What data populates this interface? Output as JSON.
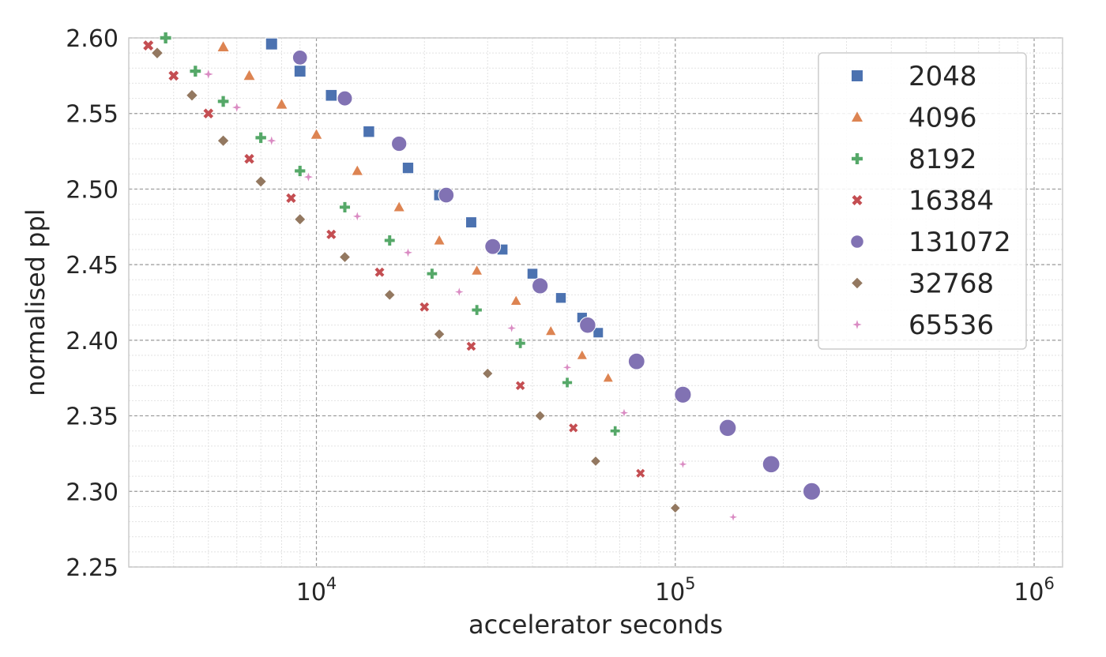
{
  "chart_data": {
    "type": "scatter",
    "title": "",
    "xlabel": "accelerator seconds",
    "ylabel": "normalised ppl",
    "xscale": "log",
    "xlim": [
      3000,
      1200000
    ],
    "ylim": [
      2.25,
      2.6
    ],
    "x_ticks": [
      {
        "value": 10000,
        "base": "10",
        "exp": "4"
      },
      {
        "value": 100000,
        "base": "10",
        "exp": "5"
      },
      {
        "value": 1000000,
        "base": "10",
        "exp": "6"
      }
    ],
    "y_ticks": [
      "2.25",
      "2.30",
      "2.35",
      "2.40",
      "2.45",
      "2.50",
      "2.55",
      "2.60"
    ],
    "grid": true,
    "legend_position": "top-right",
    "series": [
      {
        "name": "2048",
        "marker": "square",
        "color": "#4c72b0",
        "x": [
          7500,
          9000,
          11000,
          14000,
          18000,
          22000,
          27000,
          33000,
          40000,
          48000,
          55000,
          61000
        ],
        "y": [
          2.596,
          2.578,
          2.562,
          2.538,
          2.514,
          2.496,
          2.478,
          2.46,
          2.444,
          2.428,
          2.415,
          2.405
        ]
      },
      {
        "name": "4096",
        "marker": "triangle",
        "color": "#dd8452",
        "x": [
          5500,
          6500,
          8000,
          10000,
          13000,
          17000,
          22000,
          28000,
          36000,
          45000,
          55000,
          65000
        ],
        "y": [
          2.594,
          2.575,
          2.556,
          2.536,
          2.512,
          2.488,
          2.466,
          2.446,
          2.426,
          2.406,
          2.39,
          2.375
        ]
      },
      {
        "name": "8192",
        "marker": "plus",
        "color": "#55a868",
        "x": [
          3800,
          4600,
          5500,
          7000,
          9000,
          12000,
          16000,
          21000,
          28000,
          37000,
          50000,
          68000
        ],
        "y": [
          2.6,
          2.578,
          2.558,
          2.534,
          2.512,
          2.488,
          2.466,
          2.444,
          2.42,
          2.398,
          2.372,
          2.34
        ]
      },
      {
        "name": "16384",
        "marker": "x",
        "color": "#c44e52",
        "x": [
          3400,
          4000,
          5000,
          6500,
          8500,
          11000,
          15000,
          20000,
          27000,
          37000,
          52000,
          80000
        ],
        "y": [
          2.595,
          2.575,
          2.55,
          2.52,
          2.494,
          2.47,
          2.445,
          2.422,
          2.396,
          2.37,
          2.342,
          2.312
        ]
      },
      {
        "name": "131072",
        "marker": "circle",
        "color": "#8172b3",
        "x": [
          9000,
          12000,
          17000,
          23000,
          31000,
          42000,
          57000,
          78000,
          105000,
          140000,
          185000,
          240000
        ],
        "y": [
          2.587,
          2.56,
          2.53,
          2.496,
          2.462,
          2.436,
          2.41,
          2.386,
          2.364,
          2.342,
          2.318,
          2.3
        ]
      },
      {
        "name": "32768",
        "marker": "diamond",
        "color": "#937860",
        "x": [
          3600,
          4500,
          5500,
          7000,
          9000,
          12000,
          16000,
          22000,
          30000,
          42000,
          60000,
          100000
        ],
        "y": [
          2.59,
          2.562,
          2.532,
          2.505,
          2.48,
          2.455,
          2.43,
          2.404,
          2.378,
          2.35,
          2.32,
          2.289
        ]
      },
      {
        "name": "65536",
        "marker": "plus4",
        "color": "#da8bc3",
        "x": [
          5000,
          6000,
          7500,
          9500,
          13000,
          18000,
          25000,
          35000,
          50000,
          72000,
          105000,
          145000
        ],
        "y": [
          2.576,
          2.554,
          2.532,
          2.508,
          2.482,
          2.458,
          2.432,
          2.408,
          2.382,
          2.352,
          2.318,
          2.283
        ]
      }
    ]
  }
}
